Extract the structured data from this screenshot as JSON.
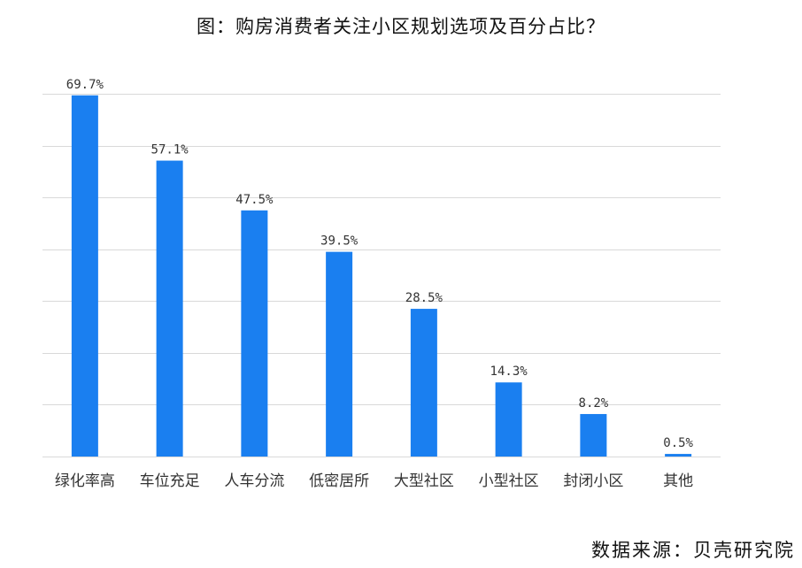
{
  "title": "图：购房消费者关注小区规划选项及百分占比？",
  "source": "数据来源：贝壳研究院",
  "chart_data": {
    "type": "bar",
    "title": "图：购房消费者关注小区规划选项及百分占比？",
    "categories": [
      "绿化率高",
      "车位充足",
      "人车分流",
      "低密居所",
      "大型社区",
      "小型社区",
      "封闭小区",
      "其他"
    ],
    "series": [
      {
        "values": [
          69.7,
          57.1,
          47.5,
          39.5,
          28.5,
          14.3,
          8.2,
          0.5
        ]
      }
    ],
    "value_labels": [
      "69.7%",
      "57.1%",
      "47.5%",
      "39.5%",
      "28.5%",
      "14.3%",
      "8.2%",
      "0.5%"
    ],
    "ylim": [
      0,
      70
    ],
    "grid": true,
    "y_tick_labels_shown": false,
    "bar_color": "#1a7ff0",
    "grid_color": "#d9d9d9"
  }
}
